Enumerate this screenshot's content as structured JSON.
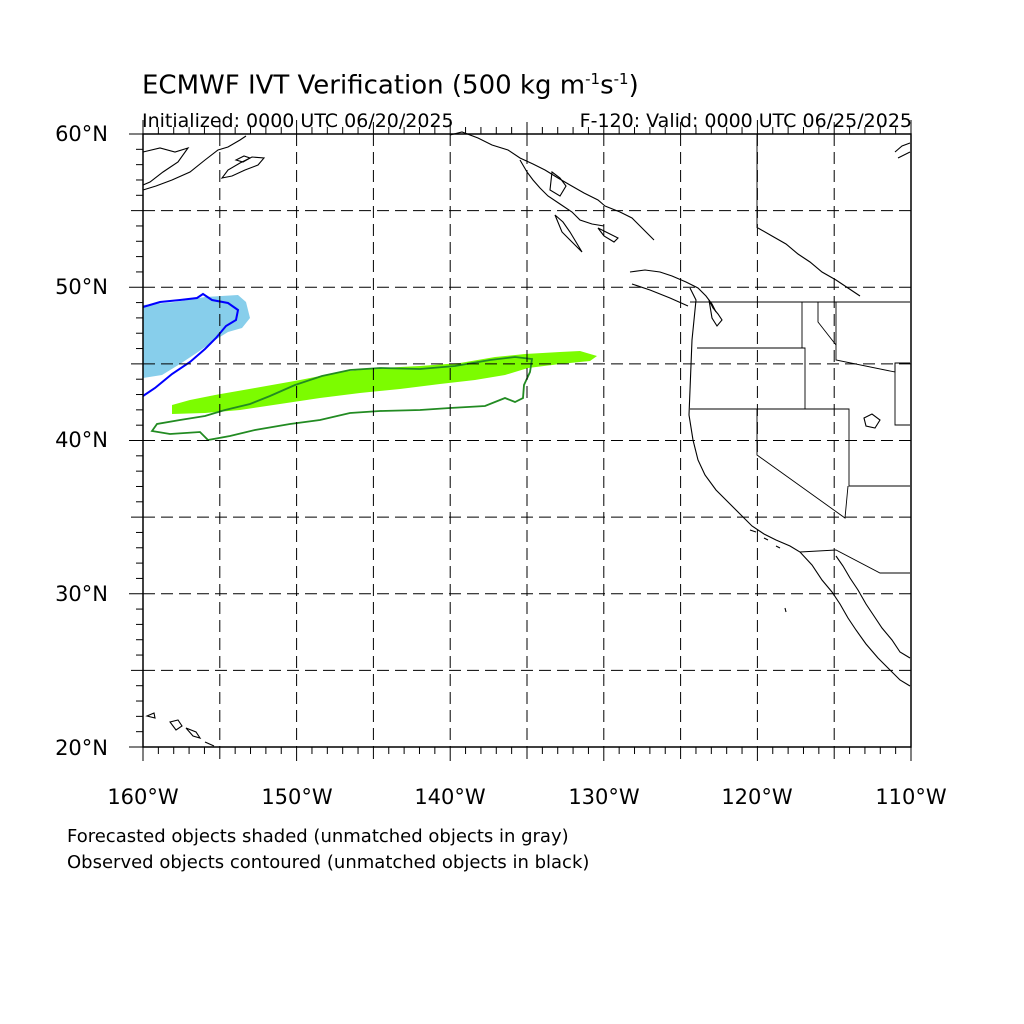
{
  "title": {
    "main": "ECMWF IVT Verification (500 kg m",
    "exp1": "-1",
    "mid": "s",
    "exp2": "-1",
    "end": ")"
  },
  "init_text": "Initialized: 0000 UTC 06/20/2025",
  "valid_text": "F-120: Valid: 0000 UTC 06/25/2025",
  "lat_labels": [
    "60°N",
    "50°N",
    "40°N",
    "30°N",
    "20°N"
  ],
  "lon_labels": [
    "160°W",
    "150°W",
    "140°W",
    "130°W",
    "120°W",
    "110°W"
  ],
  "notes": [
    "Forecasted objects shaded (unmatched objects in gray)",
    "Observed objects contoured (unmatched objects in black)"
  ],
  "colors": {
    "forecast_blue": "#87ceeb",
    "observed_blue": "#0000ff",
    "forecast_green": "#7cfc00",
    "observed_green": "#228b22",
    "gridline": "#000000"
  },
  "map_extent": {
    "lon_min": -160,
    "lon_max": -110,
    "lat_min": 20,
    "lat_max": 60
  }
}
